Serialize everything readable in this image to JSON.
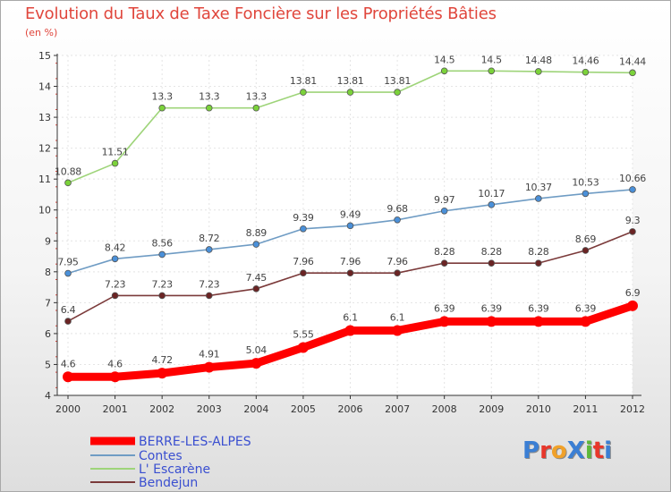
{
  "title": "Evolution du Taux de Taxe Foncière sur les Propriétés Bâties",
  "unit_label": "(en %)",
  "logo": {
    "text": "ProXiti",
    "colors": [
      "#3b7fd4",
      "#e8372b",
      "#f0a12a",
      "#3b7fd4",
      "#5db83a",
      "#e8372b",
      "#3b7fd4"
    ]
  },
  "chart_data": {
    "type": "line",
    "x": [
      "2000",
      "2001",
      "2002",
      "2003",
      "2004",
      "2005",
      "2006",
      "2007",
      "2008",
      "2009",
      "2010",
      "2011",
      "2012"
    ],
    "ylim": [
      4,
      15
    ],
    "yticks": [
      "4",
      "5",
      "6",
      "7",
      "8",
      "9",
      "10",
      "11",
      "12",
      "13",
      "14",
      "15"
    ],
    "grid": true,
    "legend_position": "bottom-left",
    "series": [
      {
        "name": "BERRE-LES-ALPES",
        "color": "#ff0000",
        "marker": "#ff0000",
        "thick": true,
        "values": [
          4.6,
          4.6,
          4.72,
          4.91,
          5.04,
          5.55,
          6.1,
          6.1,
          6.39,
          6.39,
          6.39,
          6.39,
          6.9
        ],
        "labels": [
          "4.6",
          "4.6",
          "4.72",
          "4.91",
          "5.04",
          "5.55",
          "6.1",
          "6.1",
          "6.39",
          "6.39",
          "6.39",
          "6.39",
          "6.9"
        ]
      },
      {
        "name": "Contes",
        "color": "#6f9cc4",
        "marker": "#4a90d9",
        "thick": false,
        "values": [
          7.95,
          8.42,
          8.56,
          8.72,
          8.89,
          9.39,
          9.49,
          9.68,
          9.97,
          10.17,
          10.37,
          10.53,
          10.66
        ],
        "labels": [
          "7.95",
          "8.42",
          "8.56",
          "8.72",
          "8.89",
          "9.39",
          "9.49",
          "9.68",
          "9.97",
          "10.17",
          "10.37",
          "10.53",
          "10.66"
        ]
      },
      {
        "name": "L' Escarène",
        "color": "#9ed479",
        "marker": "#7bd23a",
        "thick": false,
        "values": [
          10.88,
          11.51,
          13.3,
          13.3,
          13.3,
          13.81,
          13.81,
          13.81,
          14.5,
          14.5,
          14.48,
          14.46,
          14.44
        ],
        "labels": [
          "10.88",
          "11.51",
          "13.3",
          "13.3",
          "13.3",
          "13.81",
          "13.81",
          "13.81",
          "14.5",
          "14.5",
          "14.48",
          "14.46",
          "14.44"
        ]
      },
      {
        "name": "Bendejun",
        "color": "#7b3a3a",
        "marker": "#6b2424",
        "thick": false,
        "values": [
          6.4,
          7.23,
          7.23,
          7.23,
          7.45,
          7.96,
          7.96,
          7.96,
          8.28,
          8.28,
          8.28,
          8.69,
          9.3
        ],
        "labels": [
          "6.4",
          "7.23",
          "7.23",
          "7.23",
          "7.45",
          "7.96",
          "7.96",
          "7.96",
          "8.28",
          "8.28",
          "8.28",
          "8.69",
          "9.3"
        ]
      }
    ]
  }
}
